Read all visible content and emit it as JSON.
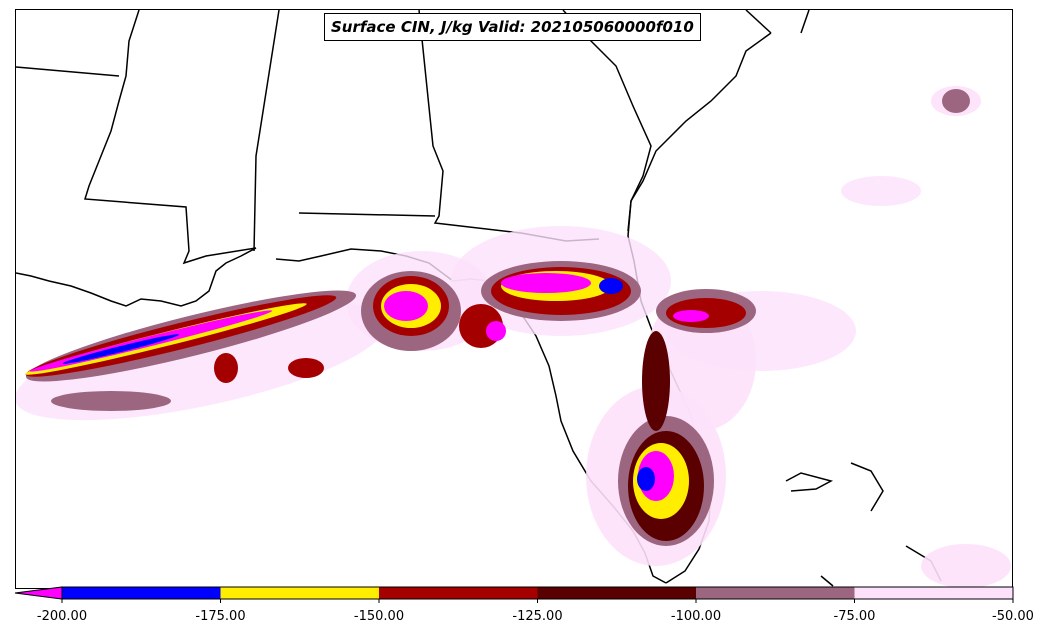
{
  "title": "Surface CIN, J/kg Valid: 202105060000f010",
  "colorbar": {
    "extend": "min",
    "ticks": [
      "-200.00",
      "-175.00",
      "-150.00",
      "-125.00",
      "-100.00",
      "-75.00",
      "-50.00"
    ],
    "bins": [
      {
        "from": -200,
        "to": -175,
        "color": "#0000ff"
      },
      {
        "from": -175,
        "to": -150,
        "color": "#ffee00"
      },
      {
        "from": -150,
        "to": -125,
        "color": "#a50000"
      },
      {
        "from": -125,
        "to": -100,
        "color": "#5a0000"
      },
      {
        "from": -100,
        "to": -75,
        "color": "#9c6680"
      },
      {
        "from": -75,
        "to": -50,
        "color": "#fde1fb"
      }
    ],
    "under_color": "#ff00ff"
  },
  "map": {
    "region": "Southeastern United States and Gulf of Mexico",
    "field": "Surface CIN",
    "units": "J/kg",
    "valid": "202105060000f010"
  }
}
